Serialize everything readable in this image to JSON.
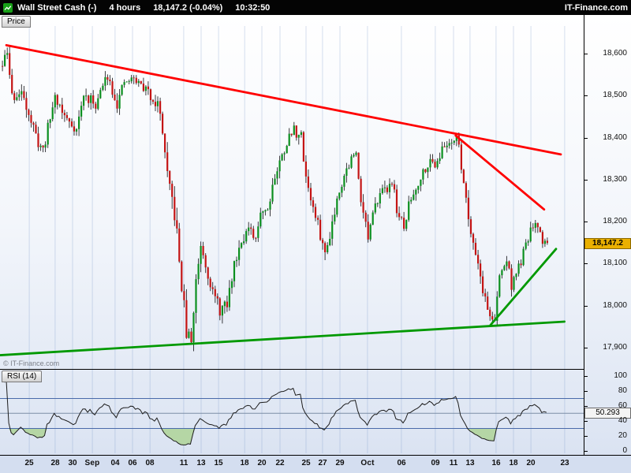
{
  "header": {
    "instrument": "Wall Street Cash (-)",
    "timeframe": "4 hours",
    "last_price": "18,147.2",
    "change": "(-0.04%)",
    "time": "10:32:50",
    "brand": "IT-Finance.com"
  },
  "price_panel": {
    "tab_label": "Price",
    "watermark": "© IT-Finance.com",
    "current_price_badge": "18,147.2"
  },
  "rsi_panel": {
    "tab_label": "RSI (14)",
    "current_value_badge": "50.293"
  },
  "chart_data": {
    "type": "candlestick",
    "title": "Wall Street Cash (-) 4 hours",
    "price_axis": {
      "last_price_value": 18147.2,
      "visible_range": [
        17875,
        18690
      ],
      "ticks": [
        {
          "label": "18,600",
          "value": 18600
        },
        {
          "label": "18,500",
          "value": 18500
        },
        {
          "label": "18,400",
          "value": 18400
        },
        {
          "label": "18,300",
          "value": 18300
        },
        {
          "label": "18,200",
          "value": 18200
        },
        {
          "label": "18,100",
          "value": 18100
        },
        {
          "label": "18,000",
          "value": 18000
        },
        {
          "label": "17,900",
          "value": 17900
        }
      ]
    },
    "x_axis": {
      "ticks": [
        {
          "label": "25",
          "i": 11.6,
          "bold": false
        },
        {
          "label": "28",
          "i": 22.4,
          "bold": false
        },
        {
          "label": "30",
          "i": 29.7,
          "bold": false
        },
        {
          "label": "Sep",
          "i": 38.0,
          "bold": true
        },
        {
          "label": "04",
          "i": 47.5,
          "bold": false
        },
        {
          "label": "06",
          "i": 54.8,
          "bold": false
        },
        {
          "label": "08",
          "i": 62.1,
          "bold": false
        },
        {
          "label": "11",
          "i": 76.2,
          "bold": false
        },
        {
          "label": "13",
          "i": 83.5,
          "bold": false
        },
        {
          "label": "15",
          "i": 90.8,
          "bold": false
        },
        {
          "label": "18",
          "i": 101.7,
          "bold": false
        },
        {
          "label": "20",
          "i": 108.9,
          "bold": false
        },
        {
          "label": "22",
          "i": 116.5,
          "bold": false
        },
        {
          "label": "25",
          "i": 127.4,
          "bold": false
        },
        {
          "label": "27",
          "i": 134.3,
          "bold": false
        },
        {
          "label": "29",
          "i": 141.6,
          "bold": false
        },
        {
          "label": "Oct",
          "i": 153.1,
          "bold": true
        },
        {
          "label": "06",
          "i": 167.3,
          "bold": false
        },
        {
          "label": "09",
          "i": 181.5,
          "bold": false
        },
        {
          "label": "11",
          "i": 189.1,
          "bold": false
        },
        {
          "label": "13",
          "i": 196.0,
          "bold": false
        },
        {
          "label": "16",
          "i": 206.9,
          "bold": false
        },
        {
          "label": "18",
          "i": 214.2,
          "bold": false
        },
        {
          "label": "20",
          "i": 221.5,
          "bold": false
        },
        {
          "label": "23",
          "i": 235.6,
          "bold": false
        }
      ]
    },
    "candles": {
      "count": 229,
      "seed": 11,
      "up_color": "#0b8f1f",
      "down_color": "#c41414",
      "waypoints": [
        [
          0,
          18570,
          30
        ],
        [
          2,
          18600,
          32
        ],
        [
          4,
          18500,
          30
        ],
        [
          9,
          18500,
          28
        ],
        [
          14,
          18400,
          28
        ],
        [
          17,
          18370,
          25
        ],
        [
          22,
          18500,
          25
        ],
        [
          26,
          18450,
          25
        ],
        [
          31,
          18420,
          25
        ],
        [
          34,
          18500,
          24
        ],
        [
          39,
          18480,
          24
        ],
        [
          44,
          18550,
          22
        ],
        [
          48,
          18480,
          24
        ],
        [
          51,
          18530,
          22
        ],
        [
          55,
          18540,
          22
        ],
        [
          59,
          18520,
          24
        ],
        [
          62,
          18500,
          24
        ],
        [
          65,
          18480,
          28
        ],
        [
          67,
          18420,
          34
        ],
        [
          69,
          18300,
          40
        ],
        [
          72,
          18220,
          42
        ],
        [
          75,
          18050,
          45
        ],
        [
          77,
          17935,
          40
        ],
        [
          79,
          17915,
          32
        ],
        [
          81,
          18060,
          36
        ],
        [
          83,
          18150,
          30
        ],
        [
          86,
          18080,
          30
        ],
        [
          88,
          18030,
          30
        ],
        [
          91,
          17990,
          30
        ],
        [
          94,
          18000,
          28
        ],
        [
          97,
          18100,
          28
        ],
        [
          100,
          18160,
          26
        ],
        [
          103,
          18180,
          25
        ],
        [
          106,
          18150,
          25
        ],
        [
          108,
          18230,
          25
        ],
        [
          111,
          18230,
          25
        ],
        [
          113,
          18290,
          25
        ],
        [
          116,
          18340,
          25
        ],
        [
          119,
          18390,
          25
        ],
        [
          122,
          18420,
          26
        ],
        [
          125,
          18400,
          28
        ],
        [
          127,
          18310,
          28
        ],
        [
          130,
          18230,
          28
        ],
        [
          133,
          18170,
          28
        ],
        [
          135,
          18120,
          28
        ],
        [
          138,
          18200,
          26
        ],
        [
          141,
          18280,
          25
        ],
        [
          143,
          18310,
          25
        ],
        [
          146,
          18350,
          24
        ],
        [
          148,
          18360,
          25
        ],
        [
          150,
          18260,
          28
        ],
        [
          153,
          18160,
          28
        ],
        [
          155,
          18210,
          25
        ],
        [
          158,
          18280,
          24
        ],
        [
          160,
          18270,
          24
        ],
        [
          163,
          18300,
          22
        ],
        [
          165,
          18230,
          25
        ],
        [
          168,
          18180,
          25
        ],
        [
          170,
          18240,
          22
        ],
        [
          173,
          18280,
          22
        ],
        [
          176,
          18320,
          22
        ],
        [
          178,
          18340,
          22
        ],
        [
          181,
          18340,
          22
        ],
        [
          184,
          18370,
          22
        ],
        [
          187,
          18390,
          22
        ],
        [
          190,
          18405,
          24
        ],
        [
          193,
          18300,
          30
        ],
        [
          195,
          18210,
          30
        ],
        [
          198,
          18130,
          28
        ],
        [
          201,
          18040,
          26
        ],
        [
          203,
          17990,
          24
        ],
        [
          206,
          17960,
          22
        ],
        [
          208,
          18070,
          26
        ],
        [
          211,
          18110,
          24
        ],
        [
          213,
          18050,
          24
        ],
        [
          216,
          18090,
          22
        ],
        [
          219,
          18140,
          22
        ],
        [
          221,
          18180,
          20
        ],
        [
          224,
          18190,
          20
        ],
        [
          226,
          18155,
          20
        ],
        [
          228,
          18147,
          16
        ]
      ]
    },
    "trendlines": [
      {
        "name": "resistance-main",
        "color": "#ff0000",
        "width": 2.8,
        "from": {
          "i": 2,
          "price": 18620
        },
        "to": {
          "i": 234,
          "price": 18360
        }
      },
      {
        "name": "resistance-steep",
        "color": "#ff0000",
        "width": 2.8,
        "from": {
          "i": 190,
          "price": 18405
        },
        "to": {
          "i": 227,
          "price": 18229
        }
      },
      {
        "name": "support-main",
        "color": "#009900",
        "width": 2.8,
        "from": {
          "i": -0.7,
          "price": 17882
        },
        "to": {
          "i": 235.5,
          "price": 17962
        }
      },
      {
        "name": "support-steep",
        "color": "#009900",
        "width": 2.8,
        "from": {
          "i": 204.6,
          "price": 17954
        },
        "to": {
          "i": 232,
          "price": 18135
        }
      }
    ],
    "rsi": {
      "period": 14,
      "current": 50.293,
      "overbought": 70,
      "oversold": 30,
      "scale_ticks": [
        100,
        80,
        60,
        40,
        20,
        0
      ],
      "fill_color": "#b5d6a5"
    }
  }
}
